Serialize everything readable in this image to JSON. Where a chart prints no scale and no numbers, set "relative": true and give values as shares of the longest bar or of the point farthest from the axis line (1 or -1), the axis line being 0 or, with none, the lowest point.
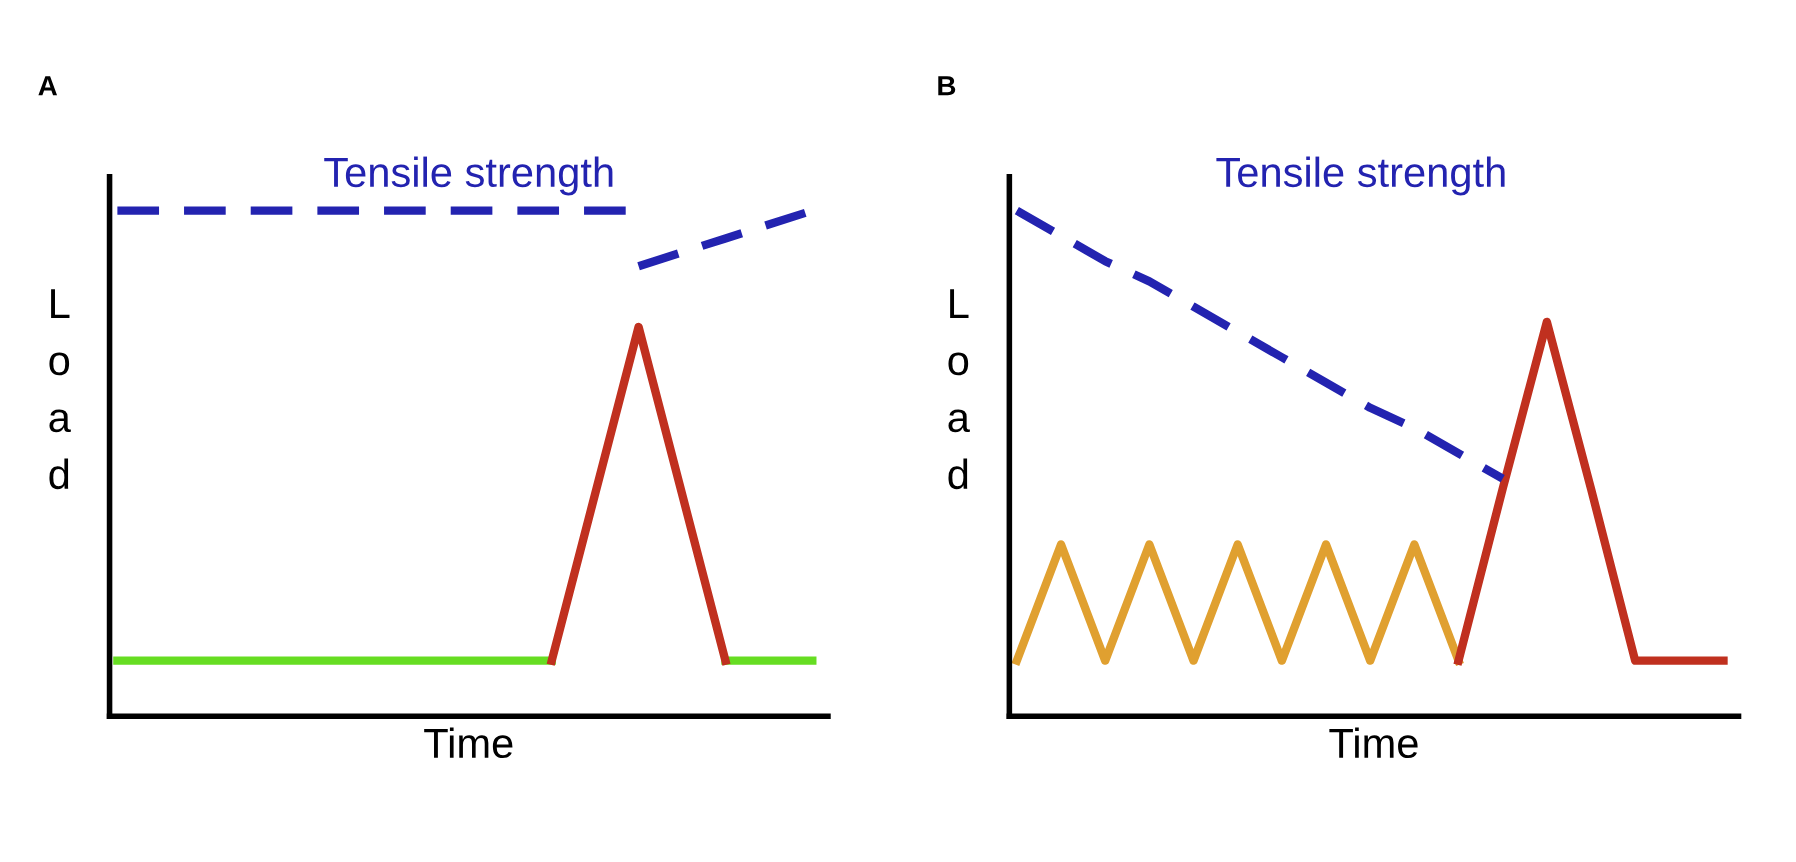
{
  "chart_data": [
    {
      "type": "line",
      "title": "A",
      "xlabel": "Time",
      "ylabel": "Load",
      "relative": true,
      "tick_labels": false,
      "legend": false,
      "line_style": "solid",
      "marker": "none",
      "categories": [
        null,
        null,
        null,
        null,
        null,
        null,
        null,
        null,
        null
      ],
      "series": [
        {
          "color": "#66dd22",
          "values": [
            0.11,
            0.11,
            0.11,
            0.11,
            0.11,
            0.11,
            null,
            0.11,
            0.11
          ]
        },
        {
          "color": "#c0301f",
          "values": [
            null,
            null,
            null,
            null,
            null,
            0.11,
            0.77,
            0.11,
            null
          ]
        },
        {
          "name": "Tensile strength",
          "color": "#2323b0",
          "line_style": "dashed",
          "values": [
            1.0,
            1.0,
            1.0,
            1.0,
            1.0,
            1.0,
            1.0,
            null,
            null
          ]
        },
        {
          "color": "#2323b0",
          "line_style": "dashed",
          "values": [
            null,
            null,
            null,
            null,
            null,
            null,
            0.89,
            0.945,
            1.0
          ]
        }
      ]
    },
    {
      "type": "line",
      "title": "B",
      "xlabel": "Time",
      "ylabel": "Load",
      "relative": true,
      "tick_labels": false,
      "legend": false,
      "line_style": "solid",
      "marker": "none",
      "categories": [
        null,
        null,
        null,
        null,
        null,
        null,
        null,
        null,
        null,
        null,
        null,
        null,
        null,
        null,
        null,
        null,
        null
      ],
      "series": [
        {
          "color": "#e0a030",
          "values": [
            0.11,
            0.34,
            0.11,
            0.34,
            0.11,
            0.34,
            0.11,
            0.34,
            0.11,
            0.34,
            0.11,
            null,
            null,
            null,
            null,
            null,
            null
          ]
        },
        {
          "color": "#c0301f",
          "values": [
            null,
            null,
            null,
            null,
            null,
            null,
            null,
            null,
            null,
            null,
            0.11,
            0.45,
            0.78,
            0.45,
            0.11,
            0.11,
            0.11
          ]
        },
        {
          "name": "Tensile strength",
          "color": "#2323b0",
          "line_style": "dashed",
          "values": [
            1.0,
            0.95,
            0.9,
            0.86,
            0.81,
            0.76,
            0.71,
            0.66,
            0.61,
            0.57,
            0.52,
            0.47,
            null,
            null,
            null,
            null,
            null
          ]
        }
      ]
    }
  ]
}
